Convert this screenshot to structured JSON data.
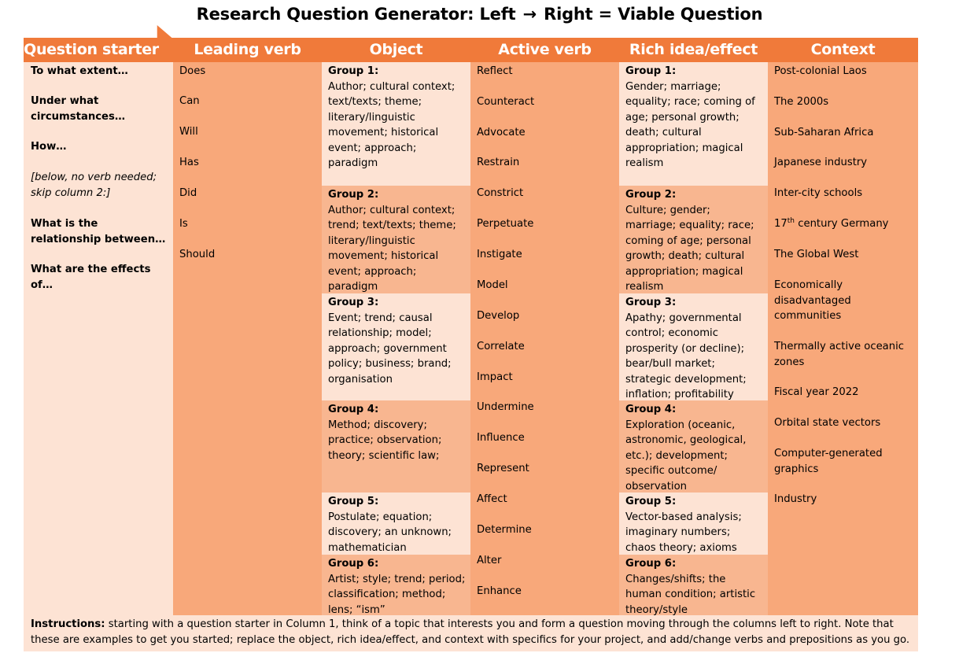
{
  "title": {
    "left": "Research Question Generator: Left",
    "arrow": "→",
    "right": "Right = Viable Question"
  },
  "headers": [
    "Question starter",
    "Leading verb",
    "Object",
    "Active verb",
    "Rich idea/effect",
    "Context"
  ],
  "question_starters": [
    "To what extent…",
    "Under what circumstances…",
    "How…",
    "[below, no verb needed; skip column 2:]",
    "What is the relationship between…",
    "What are the effects of…"
  ],
  "leading_verbs": [
    "Does",
    "Can",
    "Will",
    "Has",
    "Did",
    "Is",
    "Should"
  ],
  "objects": [
    {
      "label": "Group 1:",
      "text": "Author; cultural context; text/texts; theme; literary/linguistic movement; historical event; approach; paradigm"
    },
    {
      "label": "Group 2:",
      "text": "Author; cultural context; trend; text/texts; theme; literary/linguistic movement; historical event; approach; paradigm"
    },
    {
      "label": "Group 3:",
      "text": "Event; trend; causal relationship; model; approach; government policy; business; brand; organisation"
    },
    {
      "label": "Group 4:",
      "text": "Method; discovery; practice; observation; theory; scientific law;"
    },
    {
      "label": "Group 5:",
      "text": "Postulate; equation; discovery; an unknown; mathematician"
    },
    {
      "label": "Group 6:",
      "text": "Artist; style; trend; period; classification; method; lens; “ism”"
    }
  ],
  "active_verbs": [
    "Reflect",
    "Counteract",
    "Advocate",
    "Restrain",
    "Constrict",
    "Perpetuate",
    "Instigate",
    "Model",
    "Develop",
    "Correlate",
    "Impact",
    "Undermine",
    "Influence",
    "Represent",
    "Affect",
    "Determine",
    "Alter",
    "Enhance"
  ],
  "rich_ideas": [
    {
      "label": "Group 1:",
      "text": "Gender; marriage; equality; race; coming of age; personal growth; death; cultural appropriation; magical realism"
    },
    {
      "label": "Group 2:",
      "text": "Culture; gender; marriage; equality; race; coming of age; personal growth; death; cultural appropriation; magical realism"
    },
    {
      "label": "Group 3:",
      "text": "Apathy; governmental control; economic prosperity (or decline); bear/bull market; strategic development; inflation; profitability"
    },
    {
      "label": "Group 4:",
      "text": "Exploration (oceanic, astronomic, geological, etc.); development; specific outcome/ observation"
    },
    {
      "label": "Group 5:",
      "text": "Vector-based analysis; imaginary numbers; chaos theory; axioms"
    },
    {
      "label": "Group 6:",
      "text": "Changes/shifts; the human condition; artistic theory/style"
    }
  ],
  "contexts": [
    "Post-colonial Laos",
    "The 2000s",
    "Sub-Saharan Africa",
    "Japanese industry",
    "Inter-city schools",
    {
      "pre": "17",
      "sup": "th",
      "post": " century Germany"
    },
    "The Global West",
    "Economically disadvantaged communities",
    "Thermally active oceanic zones",
    "Fiscal year 2022",
    "Orbital state vectors",
    "Computer-generated graphics",
    "Industry"
  ],
  "instructions": {
    "label": "Instructions:",
    "text": " starting with a question starter in Column 1, think of a topic that interests you and form a question moving through the columns left to right. Note that these are examples to get you started; replace the object, rich idea/effect, and context with specifics for your project, and add/change verbs and prepositions as you go."
  },
  "colors": {
    "header": "#f07a3a",
    "light": "#fde3d4",
    "mid": "#f8b690",
    "dark": "#f8a87a"
  }
}
